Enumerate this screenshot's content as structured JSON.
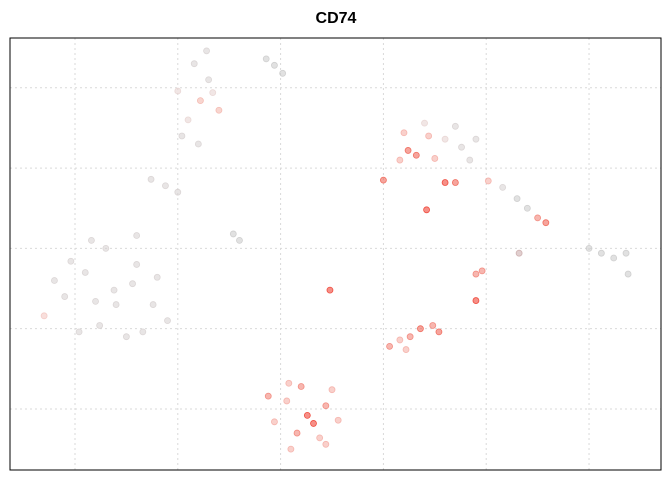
{
  "chart_data": {
    "type": "scatter",
    "title": "CD74",
    "xlim": [
      -13.16,
      18.5
    ],
    "ylim": [
      -13.8,
      13.1
    ],
    "xticks": [
      -10,
      -5,
      0,
      5,
      10,
      15
    ],
    "yticks": [
      -10,
      -5,
      0,
      5,
      10
    ],
    "grid": true,
    "points": [
      {
        "x": -8.1,
        "y": -2.6,
        "color": "#d6cfcf"
      },
      {
        "x": -9.5,
        "y": -1.5,
        "color": "#d6cfcf"
      },
      {
        "x": -7,
        "y": -1,
        "color": "#d6cfcf"
      },
      {
        "x": -10.5,
        "y": -3,
        "color": "#d6cfcf"
      },
      {
        "x": -6.2,
        "y": -3.5,
        "color": "#d6cfcf"
      },
      {
        "x": -8.8,
        "y": -4.8,
        "color": "#d6cfcf"
      },
      {
        "x": -7.5,
        "y": -5.5,
        "color": "#d6cfcf"
      },
      {
        "x": -9.8,
        "y": -5.2,
        "color": "#d6cfcf"
      },
      {
        "x": -11,
        "y": -2,
        "color": "#d6cfcf"
      },
      {
        "x": -6,
        "y": -1.8,
        "color": "#d6cfcf"
      },
      {
        "x": -8.5,
        "y": 0,
        "color": "#d6cfcf"
      },
      {
        "x": -7,
        "y": 0.8,
        "color": "#d6cfcf"
      },
      {
        "x": -9.2,
        "y": 0.5,
        "color": "#d6cfcf"
      },
      {
        "x": -10.2,
        "y": -0.8,
        "color": "#d6cfcf"
      },
      {
        "x": -5.5,
        "y": -4.5,
        "color": "#d6cfcf"
      },
      {
        "x": -11.5,
        "y": -4.2,
        "color": "#f2c4bf"
      },
      {
        "x": -8,
        "y": -3.5,
        "color": "#d6cfcf"
      },
      {
        "x": -7.2,
        "y": -2.2,
        "color": "#d6cfcf"
      },
      {
        "x": -9,
        "y": -3.3,
        "color": "#d6cfcf"
      },
      {
        "x": -6.7,
        "y": -5.2,
        "color": "#d6cfcf"
      },
      {
        "x": -3.9,
        "y": 9.2,
        "color": "#f2b2a8"
      },
      {
        "x": -4.5,
        "y": 8,
        "color": "#e6d2cf"
      },
      {
        "x": -3.5,
        "y": 10.5,
        "color": "#d6cfcf"
      },
      {
        "x": -4.2,
        "y": 11.5,
        "color": "#d6cfcf"
      },
      {
        "x": -3.6,
        "y": 12.3,
        "color": "#d6cfcf"
      },
      {
        "x": -5,
        "y": 9.8,
        "color": "#e6d2cf"
      },
      {
        "x": -3,
        "y": 8.6,
        "color": "#f2b2a8"
      },
      {
        "x": -4.8,
        "y": 7,
        "color": "#d6cfcf"
      },
      {
        "x": -4,
        "y": 6.5,
        "color": "#d6cfcf"
      },
      {
        "x": -3.3,
        "y": 9.7,
        "color": "#e6d2cf"
      },
      {
        "x": -5.6,
        "y": 3.9,
        "color": "#d6cfcf"
      },
      {
        "x": -6.3,
        "y": 4.3,
        "color": "#d6cfcf"
      },
      {
        "x": -5,
        "y": 3.5,
        "color": "#d6cfcf"
      },
      {
        "x": -2,
        "y": 0.5,
        "color": "#c8c8c8"
      },
      {
        "x": -2.3,
        "y": 0.9,
        "color": "#c8c8c8"
      },
      {
        "x": -0.7,
        "y": 11.8,
        "color": "#c8c8c8"
      },
      {
        "x": -0.3,
        "y": 11.4,
        "color": "#c8c8c8"
      },
      {
        "x": 0.1,
        "y": 10.9,
        "color": "#c8c8c8"
      },
      {
        "x": 1.3,
        "y": -10.4,
        "color": "#ee3324"
      },
      {
        "x": 0.3,
        "y": -9.5,
        "color": "#f4a9a0"
      },
      {
        "x": 2.2,
        "y": -9.8,
        "color": "#f07a6e"
      },
      {
        "x": 0.8,
        "y": -11.5,
        "color": "#f07a6e"
      },
      {
        "x": 1.9,
        "y": -11.8,
        "color": "#f4a9a0"
      },
      {
        "x": -0.3,
        "y": -10.8,
        "color": "#f4a9a0"
      },
      {
        "x": 2.8,
        "y": -10.7,
        "color": "#f4a9a0"
      },
      {
        "x": 1,
        "y": -8.6,
        "color": "#f07a6e"
      },
      {
        "x": 0.5,
        "y": -12.5,
        "color": "#f4a9a0"
      },
      {
        "x": 2.2,
        "y": -12.2,
        "color": "#f4a9a0"
      },
      {
        "x": -0.6,
        "y": -9.2,
        "color": "#f07a6e"
      },
      {
        "x": 0.4,
        "y": -8.4,
        "color": "#f4a9a0"
      },
      {
        "x": 2.5,
        "y": -8.8,
        "color": "#f4a9a0"
      },
      {
        "x": 1.6,
        "y": -10.9,
        "color": "#ee3324"
      },
      {
        "x": 6.2,
        "y": 6.1,
        "color": "#ee5a4a"
      },
      {
        "x": 6.6,
        "y": 5.8,
        "color": "#ee5a4a"
      },
      {
        "x": 7.2,
        "y": 7,
        "color": "#f4a9a0"
      },
      {
        "x": 8,
        "y": 6.8,
        "color": "#e6d2cf"
      },
      {
        "x": 8.8,
        "y": 6.3,
        "color": "#d6cfcf"
      },
      {
        "x": 9.2,
        "y": 5.5,
        "color": "#d6cfcf"
      },
      {
        "x": 7.5,
        "y": 5.6,
        "color": "#f4a9a0"
      },
      {
        "x": 6,
        "y": 7.2,
        "color": "#f4a9a0"
      },
      {
        "x": 8.5,
        "y": 7.6,
        "color": "#d6cfcf"
      },
      {
        "x": 9.5,
        "y": 6.8,
        "color": "#d6cfcf"
      },
      {
        "x": 7,
        "y": 7.8,
        "color": "#e6d2cf"
      },
      {
        "x": 5.8,
        "y": 5.5,
        "color": "#f4a9a0"
      },
      {
        "x": 10.1,
        "y": 4.2,
        "color": "#f4a9a0"
      },
      {
        "x": 10.8,
        "y": 3.8,
        "color": "#d6cfcf"
      },
      {
        "x": 11.5,
        "y": 3.1,
        "color": "#c8c8c8"
      },
      {
        "x": 12,
        "y": 2.5,
        "color": "#c8c8c8"
      },
      {
        "x": 12.5,
        "y": 1.9,
        "color": "#f07a6e"
      },
      {
        "x": 12.9,
        "y": 1.6,
        "color": "#ee5a4a"
      },
      {
        "x": 15,
        "y": 0,
        "color": "#c8c8c8"
      },
      {
        "x": 15.6,
        "y": -0.3,
        "color": "#c8c8c8"
      },
      {
        "x": 16.2,
        "y": -0.6,
        "color": "#c8c8c8"
      },
      {
        "x": 16.8,
        "y": -0.3,
        "color": "#c8c8c8"
      },
      {
        "x": 16.9,
        "y": -1.6,
        "color": "#c8c8c8"
      },
      {
        "x": 7.1,
        "y": 2.4,
        "color": "#ee3324"
      },
      {
        "x": 8,
        "y": 4.1,
        "color": "#ee3324"
      },
      {
        "x": 8.5,
        "y": 4.1,
        "color": "#ee5a4a"
      },
      {
        "x": 5,
        "y": 4.25,
        "color": "#ee5a4a"
      },
      {
        "x": 2.4,
        "y": -2.6,
        "color": "#ee3324"
      },
      {
        "x": 9.5,
        "y": -1.6,
        "color": "#f07a6e"
      },
      {
        "x": 9.8,
        "y": -1.4,
        "color": "#f07a6e"
      },
      {
        "x": 9.5,
        "y": -3.25,
        "color": "#ee3324"
      },
      {
        "x": 11.6,
        "y": -0.3,
        "color": "#c8a8a8"
      },
      {
        "x": 5.3,
        "y": -6.1,
        "color": "#f07a6e"
      },
      {
        "x": 5.8,
        "y": -5.7,
        "color": "#f4a9a0"
      },
      {
        "x": 6.3,
        "y": -5.5,
        "color": "#f07a6e"
      },
      {
        "x": 6.8,
        "y": -5,
        "color": "#ee5a4a"
      },
      {
        "x": 7.4,
        "y": -4.8,
        "color": "#f07a6e"
      },
      {
        "x": 7.7,
        "y": -5.2,
        "color": "#ee5a4a"
      },
      {
        "x": 6.1,
        "y": -6.3,
        "color": "#f4a9a0"
      }
    ]
  }
}
